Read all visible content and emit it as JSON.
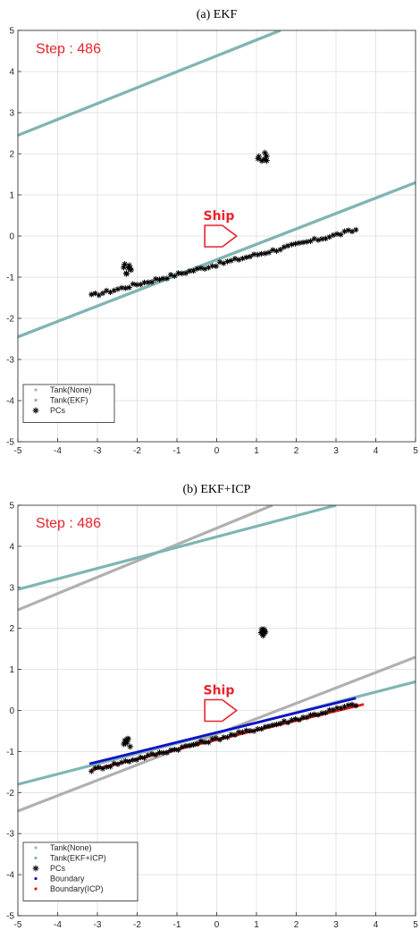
{
  "chart_data": [
    {
      "type": "scatter",
      "title": "(a) EKF",
      "annotation": "Step : 486",
      "marker_label": "Ship",
      "xlim": [
        -5,
        5
      ],
      "ylim": [
        -5,
        5
      ],
      "xticks": [
        -5,
        -4,
        -3,
        -2,
        -1,
        0,
        1,
        2,
        3,
        4,
        5
      ],
      "yticks": [
        -5,
        -4,
        -3,
        -2,
        -1,
        0,
        1,
        2,
        3,
        4,
        5
      ],
      "grid": true,
      "legend_position": "bottom-left",
      "ship_marker": {
        "x_range": [
          -0.3,
          0.5
        ],
        "y": -0.6
      },
      "lines": [
        {
          "name": "Tank(None)",
          "color": "#b0b0b0",
          "segments": [
            {
              "x": [
                -5,
                1.6
              ],
              "y": [
                2.45,
                5.0
              ]
            },
            {
              "x": [
                -5,
                5
              ],
              "y": [
                -2.45,
                1.3
              ]
            }
          ]
        },
        {
          "name": "Tank(EKF)",
          "color": "#7fb5b5",
          "segments": [
            {
              "x": [
                -5,
                1.6
              ],
              "y": [
                2.45,
                5.0
              ]
            },
            {
              "x": [
                -5,
                5
              ],
              "y": [
                -2.45,
                1.3
              ]
            }
          ]
        }
      ],
      "pcs": {
        "name": "PCs",
        "color": "#000000",
        "line": {
          "x": [
            -3.15,
            3.5
          ],
          "y": [
            -1.45,
            0.15
          ]
        },
        "clusters": [
          {
            "x": -2.25,
            "y": -0.8
          },
          {
            "x": 1.15,
            "y": 1.95
          }
        ]
      },
      "legend": [
        "Tank(None)",
        "Tank(EKF)",
        "PCs"
      ]
    },
    {
      "type": "scatter",
      "title": "(b) EKF+ICP",
      "annotation": "Step : 486",
      "marker_label": "Ship",
      "xlim": [
        -5,
        5
      ],
      "ylim": [
        -5,
        5
      ],
      "xticks": [
        -5,
        -4,
        -3,
        -2,
        -1,
        0,
        1,
        2,
        3,
        4,
        5
      ],
      "yticks": [
        -5,
        -4,
        -3,
        -2,
        -1,
        0,
        1,
        2,
        3,
        4,
        5
      ],
      "grid": true,
      "legend_position": "bottom-left",
      "ship_marker": {
        "x_range": [
          -0.3,
          0.5
        ],
        "y": -0.6
      },
      "lines": [
        {
          "name": "Tank(None)",
          "color": "#b0b0b0",
          "segments": [
            {
              "x": [
                -5,
                1.4
              ],
              "y": [
                2.45,
                5.0
              ]
            },
            {
              "x": [
                -5,
                5
              ],
              "y": [
                -2.45,
                1.3
              ]
            }
          ]
        },
        {
          "name": "Tank(EKF+ICP)",
          "color": "#7fb5b5",
          "segments": [
            {
              "x": [
                -5,
                3.0
              ],
              "y": [
                2.95,
                5.0
              ]
            },
            {
              "x": [
                -5,
                5
              ],
              "y": [
                -1.8,
                0.7
              ]
            }
          ]
        },
        {
          "name": "Boundary",
          "color": "#1010c8",
          "segments": [
            {
              "x": [
                -3.2,
                3.5
              ],
              "y": [
                -1.3,
                0.3
              ]
            }
          ]
        },
        {
          "name": "Boundary(ICP)",
          "color": "#e0201a",
          "segments": [
            {
              "x": [
                -3.15,
                3.7
              ],
              "y": [
                -1.45,
                0.15
              ]
            }
          ]
        }
      ],
      "pcs": {
        "name": "PCs",
        "color": "#000000",
        "line": {
          "x": [
            -3.15,
            3.5
          ],
          "y": [
            -1.45,
            0.15
          ]
        },
        "clusters": [
          {
            "x": -2.25,
            "y": -0.8
          },
          {
            "x": 1.15,
            "y": 1.95
          }
        ]
      },
      "legend": [
        "Tank(None)",
        "Tank(EKF+ICP)",
        "PCs",
        "Boundary",
        "Boundary(ICP)"
      ]
    }
  ]
}
